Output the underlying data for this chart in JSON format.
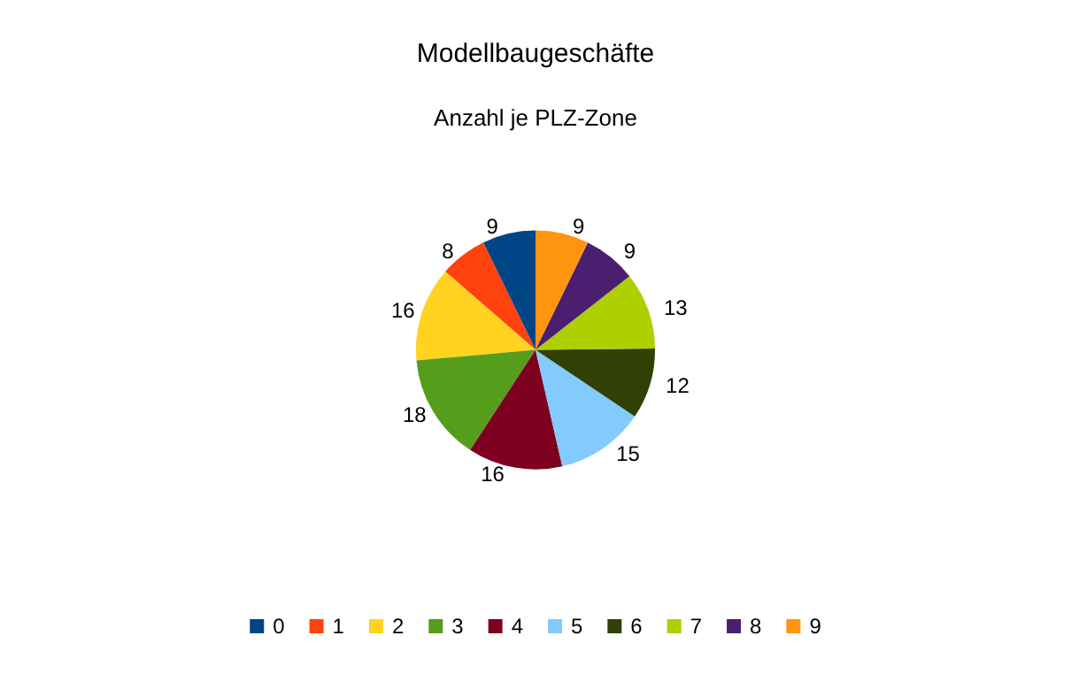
{
  "chart_data": {
    "type": "pie",
    "title": "Modellbaugeschäfte",
    "subtitle": "Anzahl je PLZ-Zone",
    "categories": [
      "0",
      "1",
      "2",
      "3",
      "4",
      "5",
      "6",
      "7",
      "8",
      "9"
    ],
    "values": [
      9,
      8,
      16,
      18,
      16,
      15,
      12,
      13,
      9,
      9
    ],
    "colors": [
      "#004586",
      "#ff420e",
      "#ffd320",
      "#579d1c",
      "#7e0021",
      "#83caff",
      "#314004",
      "#aecf00",
      "#4b1f6f",
      "#ff950e"
    ],
    "data_labels": true,
    "legend": "bottom"
  }
}
